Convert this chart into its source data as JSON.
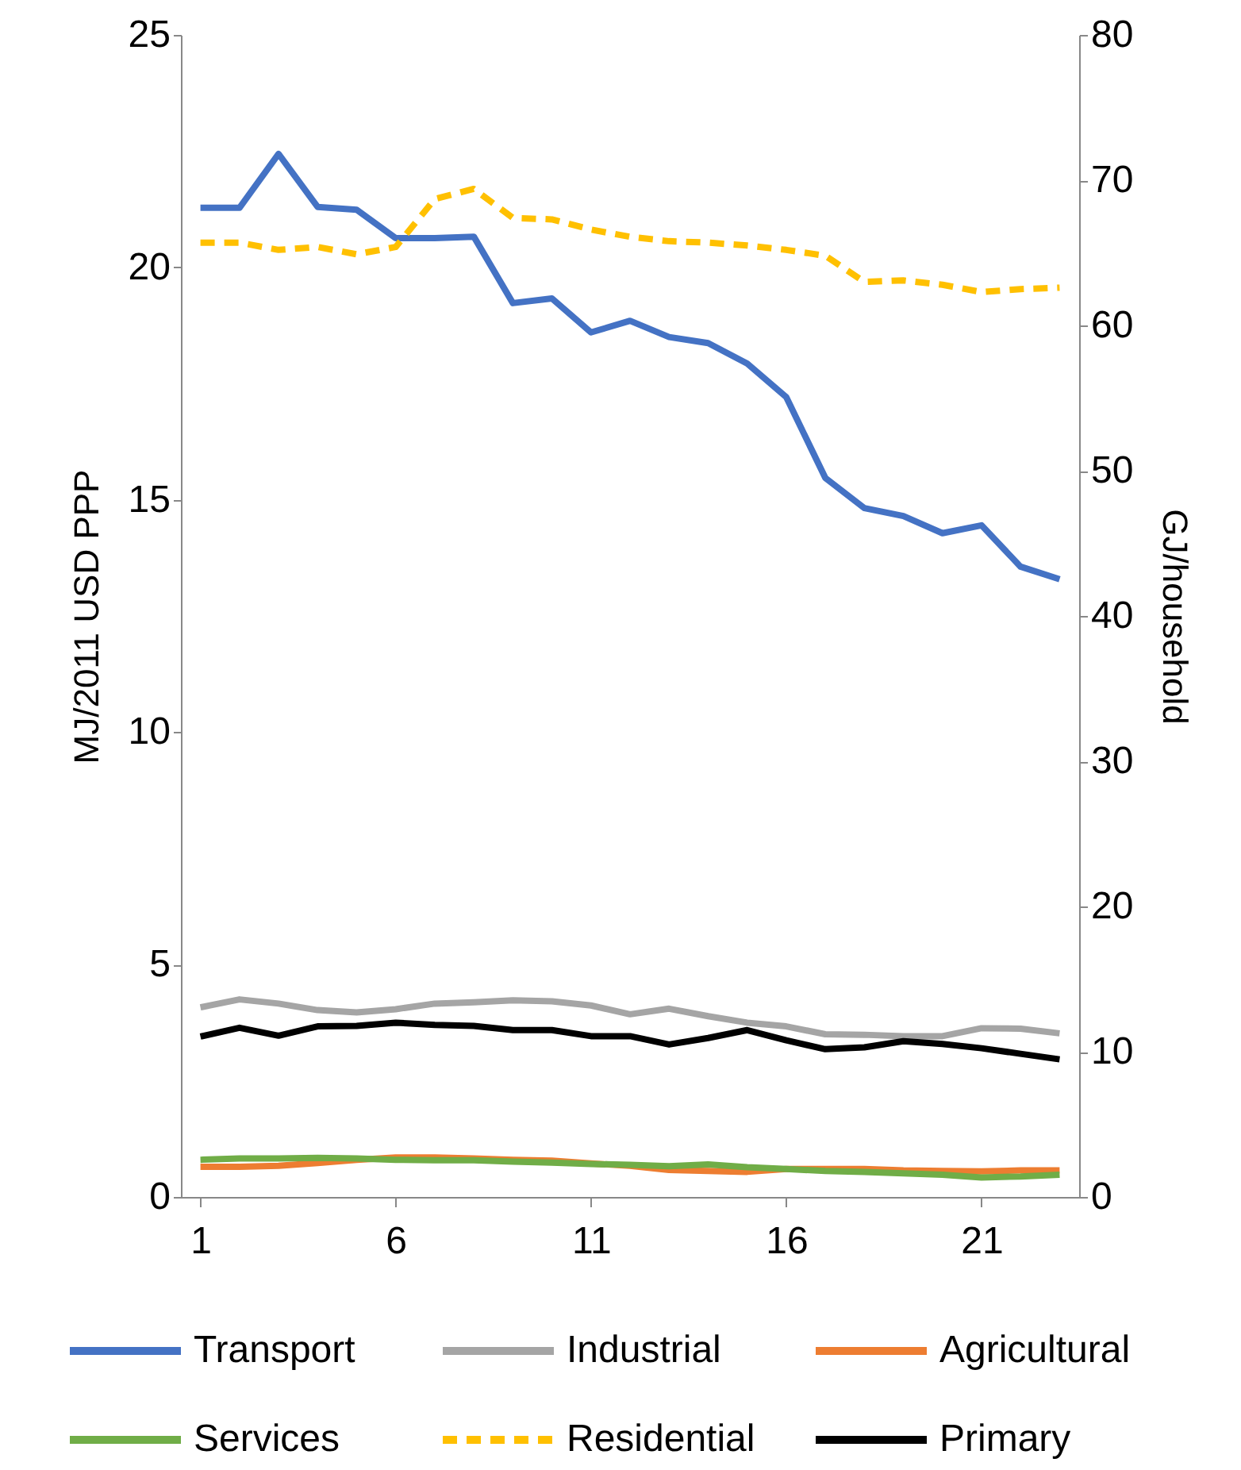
{
  "chart_data": {
    "type": "line",
    "x": [
      1,
      2,
      3,
      4,
      5,
      6,
      7,
      8,
      9,
      10,
      11,
      12,
      13,
      14,
      15,
      16,
      17,
      18,
      19,
      20,
      21,
      22,
      23
    ],
    "xlim": [
      0.5,
      23.5
    ],
    "xticks": [
      1,
      6,
      11,
      16,
      21
    ],
    "ylabel": "MJ/2011 USD PPP",
    "ylim": [
      0,
      25
    ],
    "yticks": [
      0,
      5,
      10,
      15,
      20,
      25
    ],
    "y2label": "GJ/household",
    "y2lim": [
      0,
      80
    ],
    "y2ticks": [
      0,
      10,
      20,
      30,
      40,
      50,
      60,
      70,
      80
    ],
    "grid": false,
    "legend": "bottom",
    "marker": "none",
    "series": [
      {
        "name": "Transport",
        "color": "#4472c4",
        "line_style": "solid",
        "values": [
          21.28,
          21.28,
          22.44,
          21.3,
          21.24,
          20.63,
          20.63,
          20.66,
          19.23,
          19.33,
          18.6,
          18.85,
          18.5,
          18.37,
          17.93,
          17.21,
          15.47,
          14.82,
          14.65,
          14.28,
          14.45,
          13.56,
          13.29
        ]
      },
      {
        "name": "Industrial",
        "color": "#a5a5a5",
        "line_style": "solid",
        "values": [
          4.08,
          4.25,
          4.16,
          4.02,
          3.97,
          4.04,
          4.16,
          4.19,
          4.23,
          4.21,
          4.12,
          3.93,
          4.05,
          3.89,
          3.75,
          3.67,
          3.5,
          3.49,
          3.46,
          3.46,
          3.63,
          3.62,
          3.52
        ]
      },
      {
        "name": "Agricultural",
        "color": "#ed7d31",
        "line_style": "solid",
        "values": [
          0.65,
          0.65,
          0.67,
          0.73,
          0.8,
          0.85,
          0.85,
          0.83,
          0.8,
          0.78,
          0.72,
          0.67,
          0.58,
          0.56,
          0.54,
          0.6,
          0.6,
          0.6,
          0.57,
          0.56,
          0.55,
          0.57,
          0.57
        ]
      },
      {
        "name": "Services",
        "color": "#70ad47",
        "line_style": "solid",
        "values": [
          0.8,
          0.83,
          0.83,
          0.84,
          0.83,
          0.8,
          0.79,
          0.79,
          0.76,
          0.74,
          0.71,
          0.69,
          0.66,
          0.7,
          0.64,
          0.6,
          0.56,
          0.54,
          0.51,
          0.48,
          0.42,
          0.44,
          0.48
        ]
      },
      {
        "name": "Residential",
        "color": "#ffc000",
        "line_style": "dashed",
        "axis": "y2",
        "values": [
          65.7,
          65.7,
          65.2,
          65.4,
          64.9,
          65.4,
          68.7,
          69.4,
          67.4,
          67.3,
          66.6,
          66.1,
          65.8,
          65.7,
          65.5,
          65.2,
          64.8,
          63.0,
          63.1,
          62.8,
          62.3,
          62.5,
          62.6
        ]
      },
      {
        "name": "Primary",
        "color": "#000000",
        "line_style": "solid",
        "values": [
          3.45,
          3.64,
          3.47,
          3.67,
          3.68,
          3.75,
          3.7,
          3.68,
          3.59,
          3.59,
          3.46,
          3.46,
          3.28,
          3.42,
          3.59,
          3.37,
          3.18,
          3.22,
          3.35,
          3.29,
          3.2,
          3.08,
          2.96
        ]
      }
    ]
  }
}
